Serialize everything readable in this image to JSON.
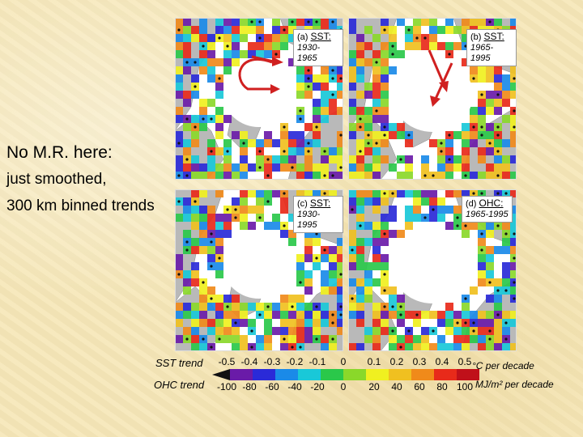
{
  "side_text": {
    "line1": "No M.R. here:",
    "line2": "just smoothed,",
    "line3": "300 km binned trends"
  },
  "panels": [
    {
      "id": "a",
      "tag": "(a)",
      "variable": "SST:",
      "period": "1930-1965"
    },
    {
      "id": "b",
      "tag": "(b)",
      "variable": "SST:",
      "period": "1965-1995"
    },
    {
      "id": "c",
      "tag": "(c)",
      "variable": "SST:",
      "period": "1930-1995"
    },
    {
      "id": "d",
      "tag": "(d)",
      "variable": "OHC:",
      "period": "1965-1995"
    }
  ],
  "legend": {
    "sst_label": "SST trend",
    "ohc_label": "OHC trend",
    "sst_unit": "°C per decade",
    "ohc_unit": "MJ/m² per decade",
    "sst_ticks": [
      "-0.5",
      "-0.4",
      "-0.3",
      "-0.2",
      "-0.1",
      "0",
      "0.1",
      "0.2",
      "0.3",
      "0.4",
      "0.5"
    ],
    "ohc_ticks": [
      "-100",
      "-80",
      "-60",
      "-40",
      "-20",
      "0",
      "20",
      "40",
      "60",
      "80",
      "100"
    ],
    "colors": [
      "#6a1ba8",
      "#2a2ad8",
      "#1a8ae8",
      "#19c8d8",
      "#2ac84a",
      "#8ad82a",
      "#f0f020",
      "#f0c020",
      "#f08a1a",
      "#e82a1a",
      "#c0101a"
    ]
  },
  "map_colors": {
    "land": "#b9b9b9",
    "ice": "#ffffff",
    "ocean_warm": [
      "#2ac84a",
      "#8ad82a",
      "#f0f020",
      "#f0c020",
      "#f08a1a",
      "#e82a1a"
    ],
    "ocean_cool": [
      "#19c8d8",
      "#1a8ae8",
      "#2a2ad8",
      "#6a1ba8"
    ]
  }
}
